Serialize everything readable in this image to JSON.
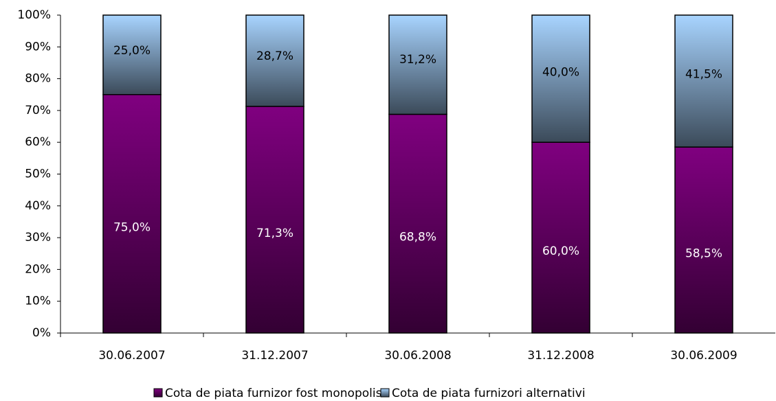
{
  "chart_data": {
    "type": "stacked_bar",
    "categories": [
      "30.06.2007",
      "31.12.2007",
      "30.06.2008",
      "31.12.2008",
      "30.06.2009"
    ],
    "series": [
      {
        "name": "Cota de piata furnizor fost monopolist",
        "color": "#800080",
        "values": [
          75.0,
          71.3,
          68.8,
          60.0,
          58.5
        ],
        "value_labels": [
          "75,0%",
          "71,3%",
          "68,8%",
          "60,0%",
          "58,5%"
        ]
      },
      {
        "name": "Cota de piata furnizori alternativi",
        "color": "#a8d4ff",
        "values": [
          25.0,
          28.7,
          31.2,
          40.0,
          41.5
        ],
        "value_labels": [
          "25,0%",
          "28,7%",
          "31,2%",
          "40,0%",
          "41,5%"
        ]
      }
    ],
    "ylim": [
      0,
      100
    ],
    "yticks": [
      {
        "value": 0,
        "label": "0%"
      },
      {
        "value": 10,
        "label": "10%"
      },
      {
        "value": 20,
        "label": "20%"
      },
      {
        "value": 30,
        "label": "30%"
      },
      {
        "value": 40,
        "label": "40%"
      },
      {
        "value": 50,
        "label": "50%"
      },
      {
        "value": 60,
        "label": "60%"
      },
      {
        "value": 70,
        "label": "70%"
      },
      {
        "value": 80,
        "label": "80%"
      },
      {
        "value": 90,
        "label": "90%"
      },
      {
        "value": 100,
        "label": "100%"
      }
    ],
    "grid": false,
    "legend": "bottom"
  }
}
